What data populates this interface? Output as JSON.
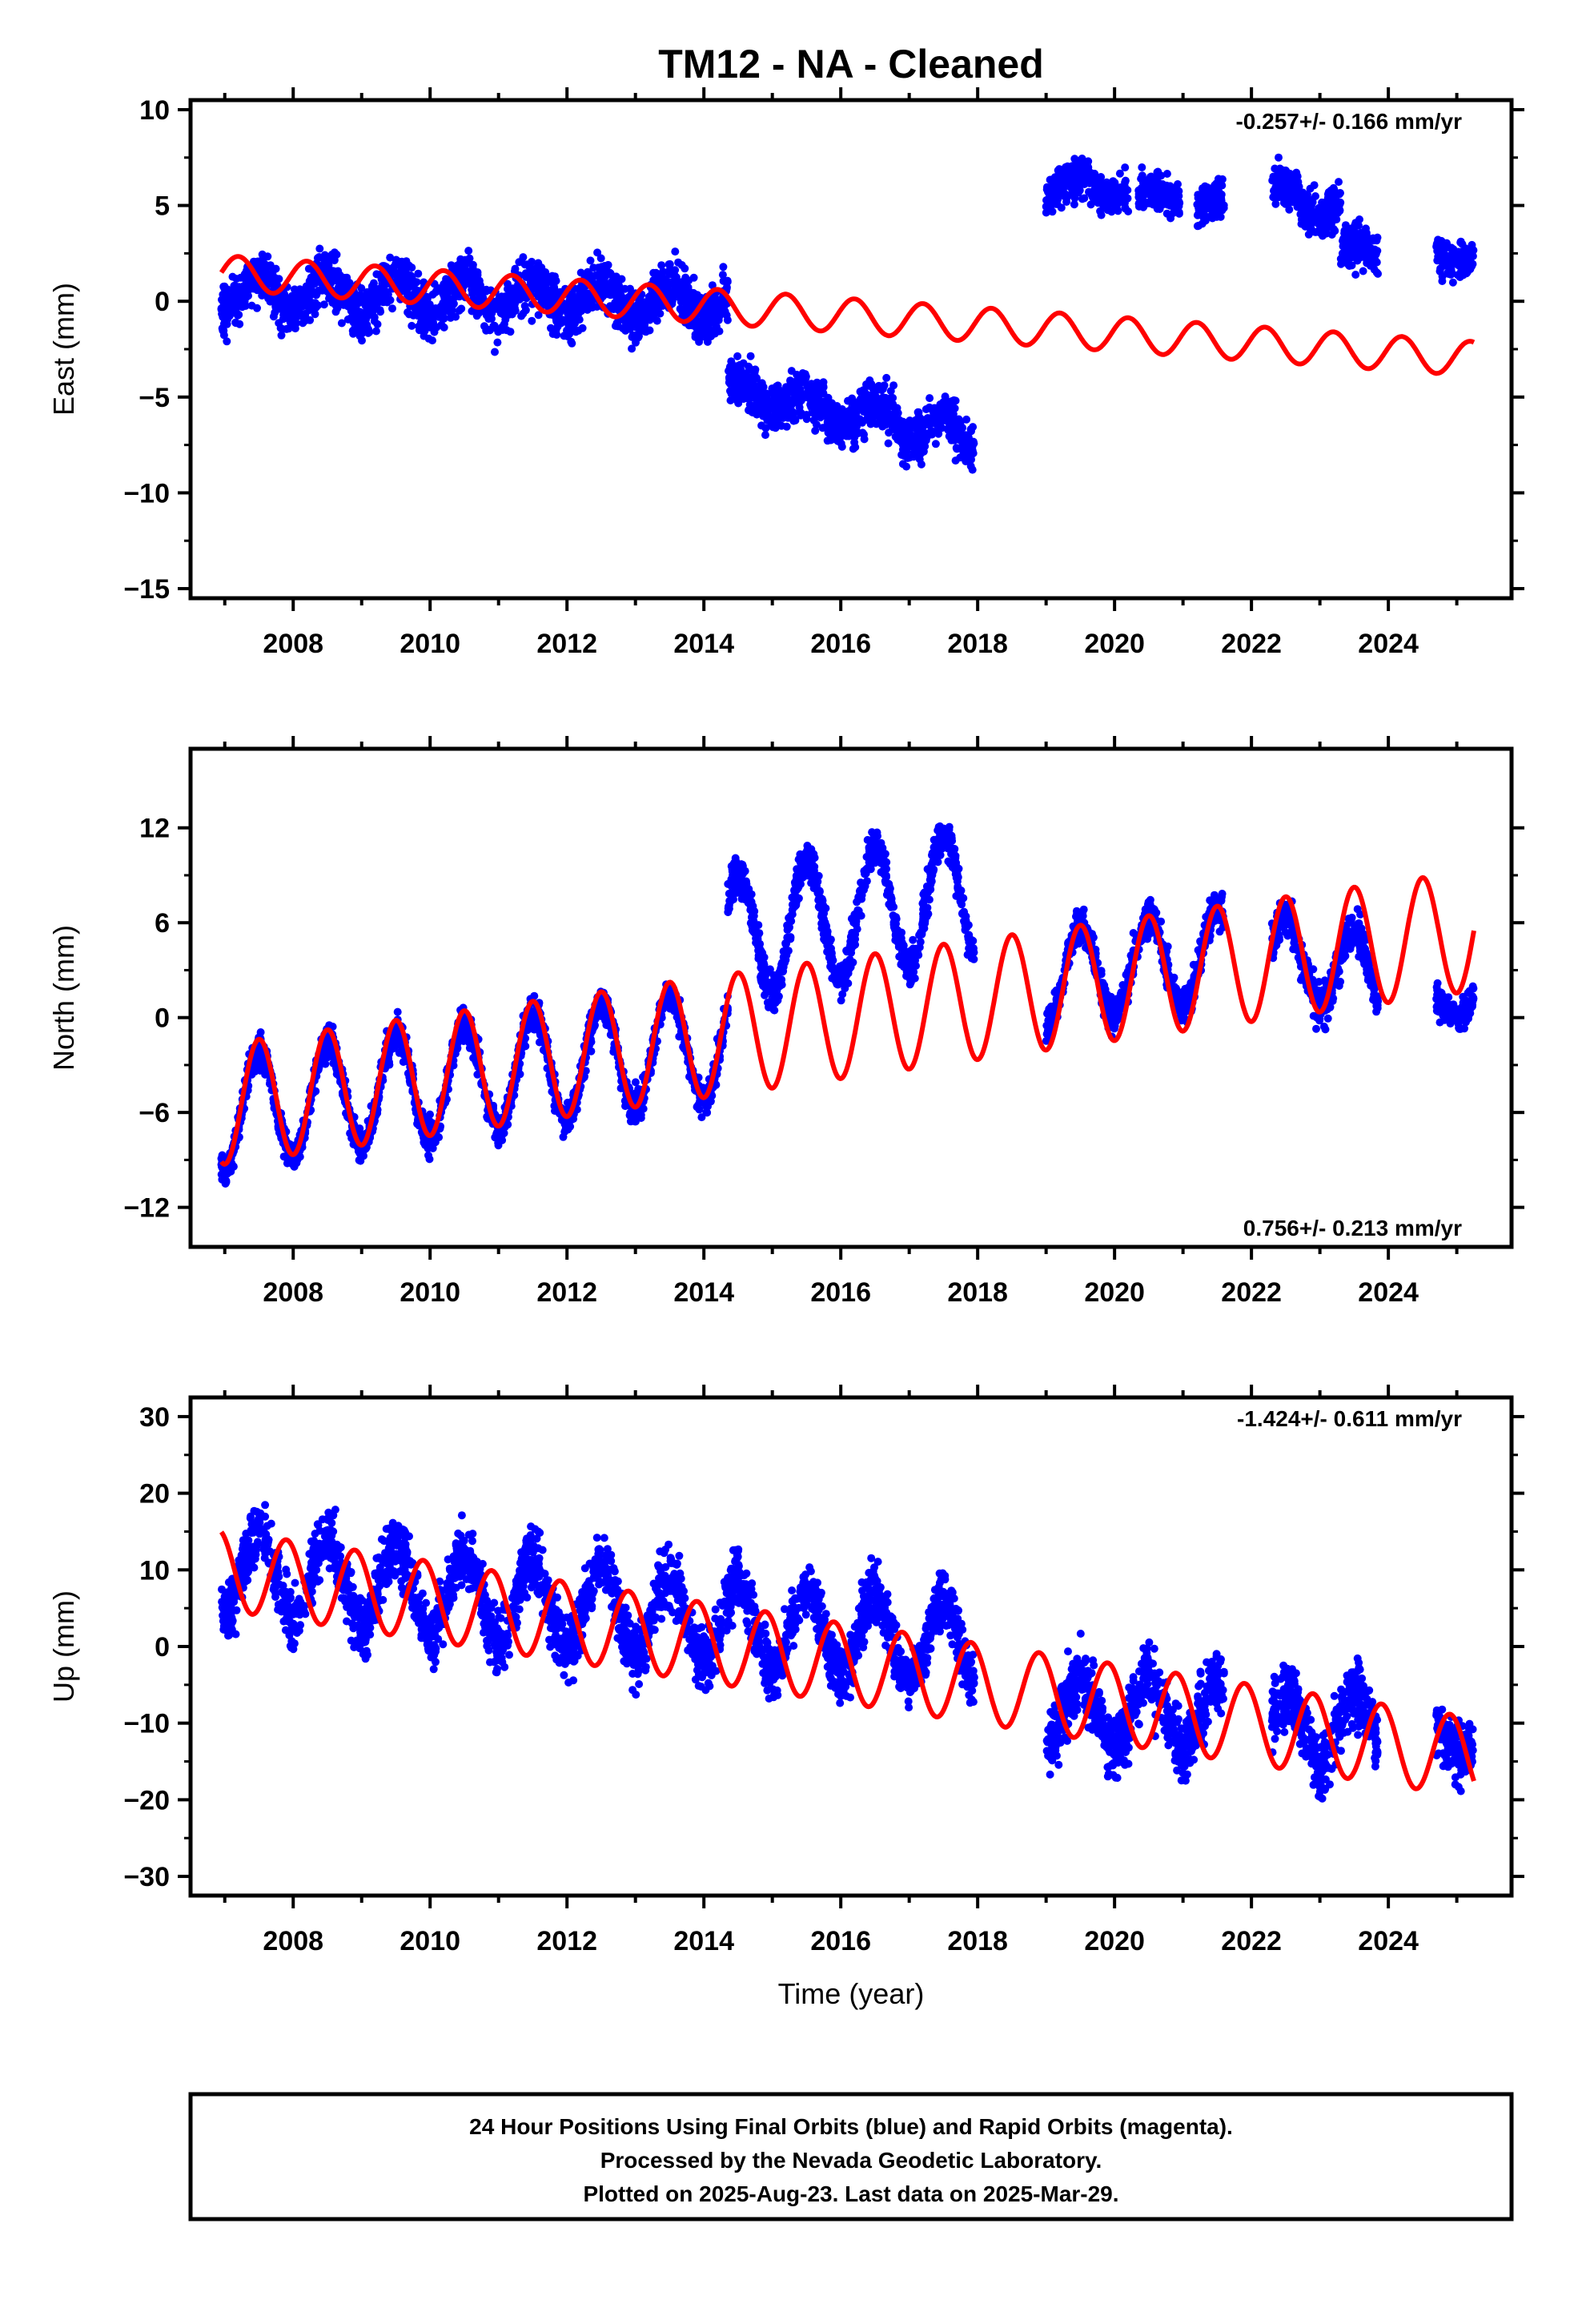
{
  "title": "TM12  - NA - Cleaned",
  "xlabel": "Time (year)",
  "footer": {
    "line1": "24 Hour Positions Using Final Orbits (blue) and Rapid Orbits (magenta).",
    "line2": "Processed by the Nevada Geodetic Laboratory.",
    "line3": "Plotted on 2025-Aug-23. Last data on 2025-Mar-29."
  },
  "colors": {
    "final_orbits": "#0000ff",
    "model": "#ff0000",
    "frame": "#000000"
  },
  "chart_data": [
    {
      "type": "scatter",
      "ylabel": "East (mm)",
      "rate": "-0.257+/- 0.166 mm/yr",
      "xlim": [
        2006.5,
        2025.8
      ],
      "ylim": [
        -15.5,
        10.5
      ],
      "yticks": [
        -15,
        -10,
        -5,
        0,
        5,
        10
      ],
      "yticklabels": [
        "−15",
        "−10",
        "−5",
        "0",
        "5",
        "10"
      ],
      "xticks": [
        2008,
        2010,
        2012,
        2014,
        2016,
        2018,
        2020,
        2022,
        2024
      ],
      "xticklabels": [
        "2008",
        "2010",
        "2012",
        "2014",
        "2016",
        "2018",
        "2020",
        "2022",
        "2024"
      ],
      "grid": false,
      "segments": [
        {
          "x0": 2006.95,
          "x1": 2014.35,
          "y0": 0.5,
          "y1": 0.0,
          "amp": 0.9,
          "noise": 1.7
        },
        {
          "x0": 2014.35,
          "x1": 2015.6,
          "y0": -4.5,
          "y1": -5.5,
          "amp": 0.6,
          "noise": 1.5
        },
        {
          "x0": 2015.6,
          "x1": 2017.95,
          "y0": -5.5,
          "y1": -7.0,
          "amp": 0.8,
          "noise": 1.6
        },
        {
          "x0": 2019.0,
          "x1": 2020.2,
          "y0": 6.0,
          "y1": 6.0,
          "amp": 0.5,
          "noise": 1.3
        },
        {
          "x0": 2020.35,
          "x1": 2020.95,
          "y0": 5.5,
          "y1": 5.5,
          "amp": 0.3,
          "noise": 1.2
        },
        {
          "x0": 2021.2,
          "x1": 2021.6,
          "y0": 5.0,
          "y1": 5.0,
          "amp": 0.3,
          "noise": 1.2
        },
        {
          "x0": 2022.3,
          "x1": 2023.3,
          "y0": 5.5,
          "y1": 5.0,
          "amp": 0.6,
          "noise": 1.4
        },
        {
          "x0": 2023.3,
          "x1": 2023.85,
          "y0": 2.5,
          "y1": 2.5,
          "amp": 0.6,
          "noise": 1.6
        },
        {
          "x0": 2024.7,
          "x1": 2025.25,
          "y0": 2.5,
          "y1": 2.5,
          "amp": 0.4,
          "noise": 1.1
        }
      ],
      "model": {
        "x0": 2006.95,
        "x1": 2025.25,
        "y0": 1.5,
        "y1": -3.0,
        "amp": 0.9,
        "phase": 0.3
      }
    },
    {
      "type": "scatter",
      "ylabel": "North (mm)",
      "rate": "0.756+/- 0.213 mm/yr",
      "xlim": [
        2006.5,
        2025.8
      ],
      "ylim": [
        -14.5,
        17
      ],
      "yticks": [
        -12,
        -6,
        0,
        6,
        12
      ],
      "yticklabels": [
        "−12",
        "−6",
        "0",
        "6",
        "12"
      ],
      "xticks": [
        2008,
        2010,
        2012,
        2014,
        2016,
        2018,
        2020,
        2022,
        2024
      ],
      "xticklabels": [
        "2008",
        "2010",
        "2012",
        "2014",
        "2016",
        "2018",
        "2020",
        "2022",
        "2024"
      ],
      "grid": false,
      "segments": [
        {
          "x0": 2006.95,
          "x1": 2014.35,
          "y0": -6.0,
          "y1": -1.5,
          "amp": 3.5,
          "noise": 1.3
        },
        {
          "x0": 2014.35,
          "x1": 2017.95,
          "y0": 5.0,
          "y1": 8.0,
          "amp": 4.0,
          "noise": 1.5
        },
        {
          "x0": 2019.0,
          "x1": 2021.6,
          "y0": 2.5,
          "y1": 4.0,
          "amp": 3.0,
          "noise": 1.4
        },
        {
          "x0": 2022.3,
          "x1": 2023.85,
          "y0": 4.0,
          "y1": 2.5,
          "amp": 2.5,
          "noise": 1.6
        },
        {
          "x0": 2024.7,
          "x1": 2025.25,
          "y0": 1.0,
          "y1": 1.0,
          "amp": 0.8,
          "noise": 1.2
        }
      ],
      "model": {
        "x0": 2006.95,
        "x1": 2025.25,
        "y0": -5.5,
        "y1": 5.5,
        "amp": 3.8,
        "phase": 0.0
      }
    },
    {
      "type": "scatter",
      "ylabel": "Up (mm)",
      "rate": "-1.424+/- 0.611 mm/yr",
      "xlim": [
        2006.5,
        2025.8
      ],
      "ylim": [
        -32.5,
        32.5
      ],
      "yticks": [
        -30,
        -20,
        -10,
        0,
        10,
        20,
        30
      ],
      "yticklabels": [
        "−30",
        "−20",
        "−10",
        "0",
        "10",
        "20",
        "30"
      ],
      "xticks": [
        2008,
        2010,
        2012,
        2014,
        2016,
        2018,
        2020,
        2022,
        2024
      ],
      "xticklabels": [
        "2008",
        "2010",
        "2012",
        "2014",
        "2016",
        "2018",
        "2020",
        "2022",
        "2024"
      ],
      "grid": false,
      "segments": [
        {
          "x0": 2006.95,
          "x1": 2017.95,
          "y0": 10.0,
          "y1": 0.0,
          "amp": 5.5,
          "noise": 5.0
        },
        {
          "x0": 2019.0,
          "x1": 2021.6,
          "y0": -8.0,
          "y1": -9.0,
          "amp": 4.5,
          "noise": 5.5
        },
        {
          "x0": 2022.3,
          "x1": 2023.85,
          "y0": -11.0,
          "y1": -10.0,
          "amp": 4.5,
          "noise": 5.5
        },
        {
          "x0": 2024.7,
          "x1": 2025.25,
          "y0": -10.0,
          "y1": -12.0,
          "amp": 3.0,
          "noise": 5.0
        }
      ],
      "model": {
        "x0": 2006.95,
        "x1": 2025.25,
        "y0": 10.0,
        "y1": -14.5,
        "amp": 5.2,
        "phase": 0.6
      }
    }
  ]
}
